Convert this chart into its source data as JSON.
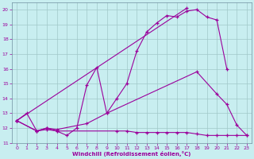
{
  "bg_color": "#c8eef0",
  "grid_color": "#a0c8c8",
  "line_color": "#9b009b",
  "marker": "+",
  "xlabel": "Windchill (Refroidissement éolien,°C)",
  "ylabel_ticks": [
    11,
    12,
    13,
    14,
    15,
    16,
    17,
    18,
    19,
    20
  ],
  "xlim": [
    -0.5,
    23.5
  ],
  "ylim": [
    11,
    20.5
  ],
  "xticks": [
    0,
    1,
    2,
    3,
    4,
    5,
    6,
    7,
    8,
    9,
    10,
    11,
    12,
    13,
    14,
    15,
    16,
    17,
    18,
    19,
    20,
    21,
    22,
    23
  ],
  "series": [
    {
      "x": [
        0,
        1,
        2,
        3,
        4,
        5,
        6,
        7,
        8,
        9,
        10,
        11,
        12,
        13,
        14,
        15,
        16,
        17,
        18,
        19,
        20,
        21
      ],
      "y": [
        12.5,
        13.0,
        11.8,
        12.0,
        11.8,
        11.5,
        12.0,
        14.9,
        16.1,
        13.0,
        14.0,
        15.0,
        17.2,
        18.5,
        19.1,
        19.6,
        19.5,
        19.9,
        20.0,
        19.5,
        19.3,
        16.0
      ]
    },
    {
      "x": [
        0,
        17
      ],
      "y": [
        12.5,
        20.1
      ]
    },
    {
      "x": [
        0,
        2,
        3,
        4,
        7,
        9,
        18,
        20,
        21,
        22,
        23
      ],
      "y": [
        12.5,
        11.8,
        12.0,
        11.9,
        12.3,
        13.0,
        15.8,
        14.3,
        13.6,
        12.2,
        11.5
      ]
    },
    {
      "x": [
        0,
        2,
        3,
        4,
        10,
        11,
        12,
        13,
        14,
        15,
        16,
        17,
        18,
        19,
        20,
        21,
        22,
        23
      ],
      "y": [
        12.5,
        11.8,
        11.9,
        11.8,
        11.8,
        11.8,
        11.7,
        11.7,
        11.7,
        11.7,
        11.7,
        11.7,
        11.6,
        11.5,
        11.5,
        11.5,
        11.5,
        11.5
      ]
    }
  ]
}
